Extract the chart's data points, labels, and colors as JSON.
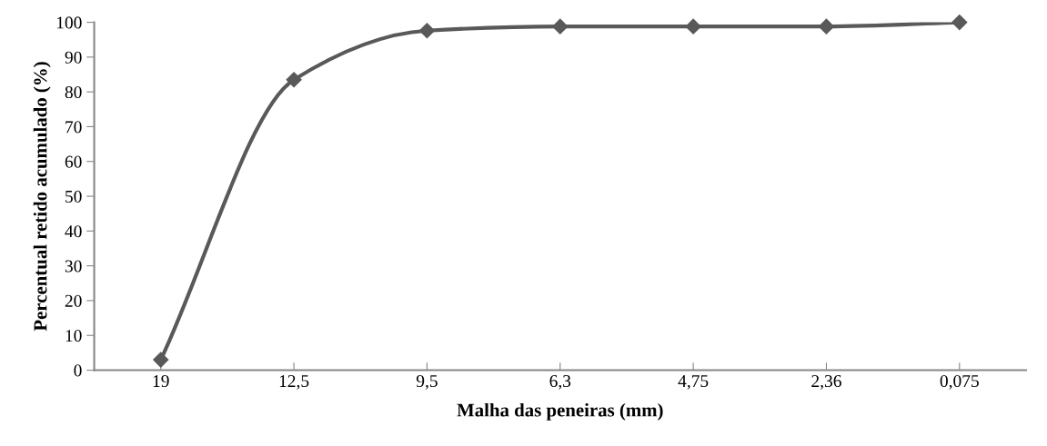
{
  "chart_data": {
    "type": "line",
    "xlabel": "Malha das peneiras (mm)",
    "ylabel": "Percentual retido acumulado (%)",
    "categories": [
      "19",
      "12,5",
      "9,5",
      "6,3",
      "4,75",
      "2,36",
      "0,075"
    ],
    "series": [
      {
        "color": "#595959",
        "values": [
          3,
          83.5,
          97.6,
          98.8,
          98.8,
          98.8,
          100
        ]
      }
    ],
    "ylim": [
      0,
      100
    ],
    "yticks": [
      0,
      10,
      20,
      30,
      40,
      50,
      60,
      70,
      80,
      90,
      100
    ],
    "marker": "diamond",
    "line_style": "solid",
    "grid": false,
    "legend": false
  }
}
